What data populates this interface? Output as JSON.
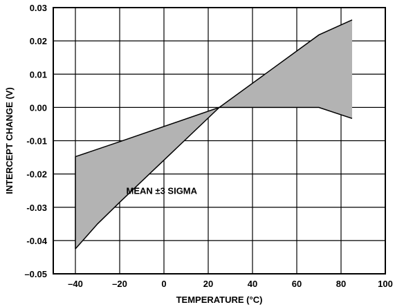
{
  "chart_data": {
    "type": "area",
    "xlabel": "TEMPERATURE (°C)",
    "ylabel": "INTERCEPT CHANGE (V)",
    "xlim": [
      -50,
      100
    ],
    "ylim": [
      -0.05,
      0.03
    ],
    "xticks": [
      -40,
      -20,
      0,
      20,
      40,
      60,
      80,
      100
    ],
    "xtick_labels": [
      "–40",
      "–20",
      "0",
      "20",
      "40",
      "60",
      "80",
      "100"
    ],
    "yticks": [
      0.03,
      0.02,
      0.01,
      0.0,
      -0.01,
      -0.02,
      -0.03,
      -0.04,
      -0.05
    ],
    "ytick_labels": [
      "0.03",
      "0.02",
      "0.01",
      "0.00",
      "-0.01",
      "-0.02",
      "-0.03",
      "-0.04",
      "–0.05"
    ],
    "grid": true,
    "fill_color": "#b3b3b3",
    "line_color": "#000000",
    "series": [
      {
        "x": [
          -40,
          -20,
          25,
          70,
          85
        ],
        "y": [
          -0.0148,
          -0.0103,
          0.0,
          0.0218,
          0.0263
        ]
      },
      {
        "x": [
          -40,
          -30,
          -20,
          25,
          70,
          85
        ],
        "y": [
          -0.0425,
          -0.035,
          -0.0285,
          0.0,
          0.0,
          -0.0033
        ]
      }
    ],
    "annotations": [
      {
        "text": "MEAN ±3 SIGMA",
        "x": -1,
        "y": -0.025
      }
    ]
  }
}
